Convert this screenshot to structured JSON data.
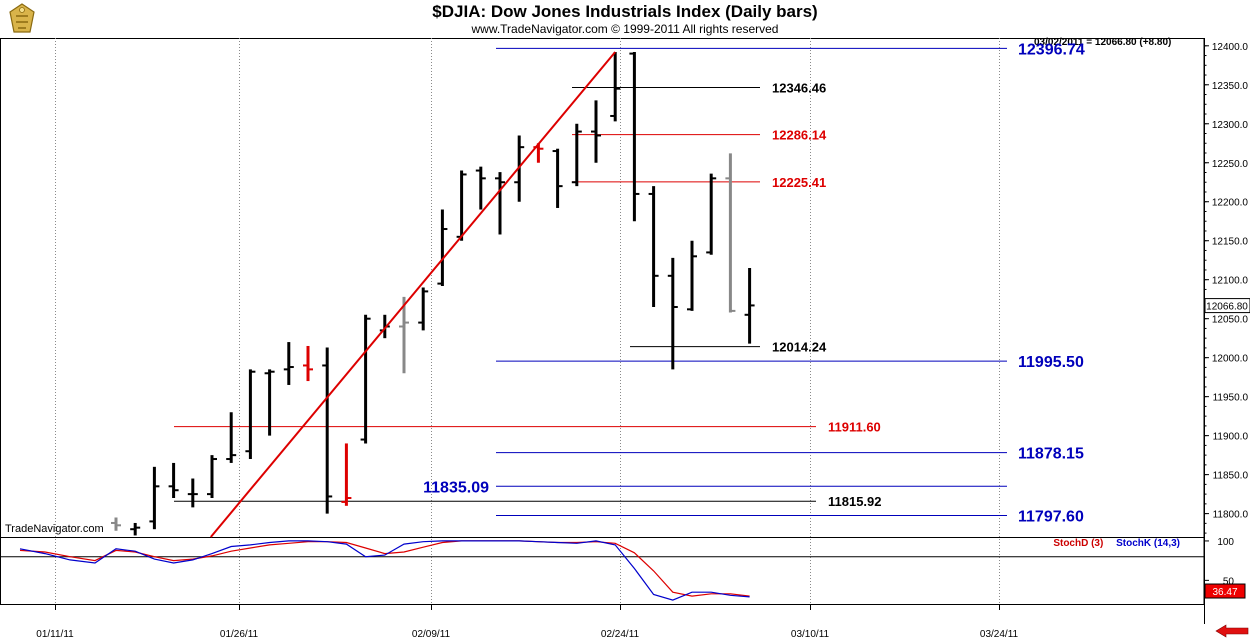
{
  "chart_data": {
    "type": "ohlc",
    "title": "$DJIA:  Dow Jones Industrials Index  (Daily bars)",
    "subtitle": "www.TradeNavigator.com © 1999-2011 All rights reserved",
    "quote": "03/02/2011 = 12066.80 (+8.80)",
    "last_value": "12066.80",
    "watermark": "TradeNavigator.com",
    "ylim": [
      11770,
      12410
    ],
    "y_ticks": [
      "11800.0",
      "11850.0",
      "11900.0",
      "11950.0",
      "12000.0",
      "12050.0",
      "12100.0",
      "12150.0",
      "12200.0",
      "12250.0",
      "12300.0",
      "12350.0",
      "12400.0"
    ],
    "x_ticks": [
      "01/11/11",
      "01/26/11",
      "02/09/11",
      "02/24/11",
      "03/10/11",
      "03/24/11"
    ],
    "bars": [
      {
        "date": "01/04",
        "o": 11788,
        "h": 11795,
        "l": 11778,
        "c": 11785,
        "color": "gray"
      },
      {
        "date": "01/05",
        "o": 11780,
        "h": 11788,
        "l": 11772,
        "c": 11782,
        "color": "black"
      },
      {
        "date": "01/06",
        "o": 11790,
        "h": 11860,
        "l": 11780,
        "c": 11835,
        "color": "black"
      },
      {
        "date": "01/07",
        "o": 11835,
        "h": 11865,
        "l": 11820,
        "c": 11830,
        "color": "black"
      },
      {
        "date": "01/10",
        "o": 11825,
        "h": 11845,
        "l": 11808,
        "c": 11825,
        "color": "black"
      },
      {
        "date": "01/11",
        "o": 11825,
        "h": 11875,
        "l": 11820,
        "c": 11870,
        "color": "black"
      },
      {
        "date": "01/12",
        "o": 11870,
        "h": 11930,
        "l": 11865,
        "c": 11875,
        "color": "black"
      },
      {
        "date": "01/13",
        "o": 11880,
        "h": 11985,
        "l": 11870,
        "c": 11982,
        "color": "black"
      },
      {
        "date": "01/14",
        "o": 11980,
        "h": 11985,
        "l": 11900,
        "c": 11982,
        "color": "black"
      },
      {
        "date": "01/18",
        "o": 11985,
        "h": 12020,
        "l": 11965,
        "c": 11988,
        "color": "black"
      },
      {
        "date": "01/19",
        "o": 11990,
        "h": 12015,
        "l": 11970,
        "c": 11985,
        "color": "red"
      },
      {
        "date": "01/20",
        "o": 11990,
        "h": 12013,
        "l": 11800,
        "c": 11822,
        "color": "black"
      },
      {
        "date": "01/21",
        "o": 11815,
        "h": 11890,
        "l": 11810,
        "c": 11820,
        "color": "red"
      },
      {
        "date": "01/24",
        "o": 11895,
        "h": 12055,
        "l": 11890,
        "c": 12050,
        "color": "black"
      },
      {
        "date": "01/25",
        "o": 12035,
        "h": 12055,
        "l": 12025,
        "c": 12040,
        "color": "black"
      },
      {
        "date": "01/26",
        "o": 12040,
        "h": 12078,
        "l": 11980,
        "c": 12045,
        "color": "gray"
      },
      {
        "date": "01/27",
        "o": 12045,
        "h": 12090,
        "l": 12035,
        "c": 12085,
        "color": "black"
      },
      {
        "date": "01/28",
        "o": 12095,
        "h": 12190,
        "l": 12092,
        "c": 12165,
        "color": "black"
      },
      {
        "date": "01/31",
        "o": 12155,
        "h": 12240,
        "l": 12150,
        "c": 12235,
        "color": "black"
      },
      {
        "date": "02/01",
        "o": 12240,
        "h": 12245,
        "l": 12190,
        "c": 12230,
        "color": "black"
      },
      {
        "date": "02/02",
        "o": 12230,
        "h": 12238,
        "l": 12158,
        "c": 12225,
        "color": "black"
      },
      {
        "date": "02/03",
        "o": 12225,
        "h": 12285,
        "l": 12200,
        "c": 12270,
        "color": "black"
      },
      {
        "date": "02/04",
        "o": 12270,
        "h": 12275,
        "l": 12250,
        "c": 12268,
        "color": "red"
      },
      {
        "date": "02/07",
        "o": 12265,
        "h": 12268,
        "l": 12192,
        "c": 12220,
        "color": "black"
      },
      {
        "date": "02/08",
        "o": 12225,
        "h": 12300,
        "l": 12220,
        "c": 12290,
        "color": "black"
      },
      {
        "date": "02/09",
        "o": 12290,
        "h": 12330,
        "l": 12250,
        "c": 12285,
        "color": "black"
      },
      {
        "date": "02/10",
        "o": 12310,
        "h": 12392,
        "l": 12303,
        "c": 12345,
        "color": "black"
      },
      {
        "date": "02/11",
        "o": 12390,
        "h": 12392,
        "l": 12175,
        "c": 12210,
        "color": "black"
      },
      {
        "date": "02/14",
        "o": 12210,
        "h": 12220,
        "l": 12065,
        "c": 12105,
        "color": "black"
      },
      {
        "date": "02/15",
        "o": 12105,
        "h": 12128,
        "l": 11985,
        "c": 12065,
        "color": "black"
      },
      {
        "date": "02/16",
        "o": 12062,
        "h": 12150,
        "l": 12060,
        "c": 12130,
        "color": "black"
      },
      {
        "date": "02/17",
        "o": 12135,
        "h": 12236,
        "l": 12132,
        "c": 12230,
        "color": "black"
      },
      {
        "date": "02/18",
        "o": 12230,
        "h": 12262,
        "l": 12058,
        "c": 12060,
        "color": "gray"
      },
      {
        "date": "02/22",
        "o": 12055,
        "h": 12115,
        "l": 12018,
        "c": 12067,
        "color": "black"
      }
    ],
    "levels": [
      {
        "value": 12396.74,
        "label": "12396.74",
        "color": "blue"
      },
      {
        "value": 12346.46,
        "label": "12346.46",
        "color": "black"
      },
      {
        "value": 12286.14,
        "label": "12286.14",
        "color": "red"
      },
      {
        "value": 12225.41,
        "label": "12225.41",
        "color": "red"
      },
      {
        "value": 12014.24,
        "label": "12014.24",
        "color": "black"
      },
      {
        "value": 11995.5,
        "label": "11995.50",
        "color": "blue"
      },
      {
        "value": 11911.6,
        "label": "11911.60",
        "color": "red"
      },
      {
        "value": 11878.15,
        "label": "11878.15",
        "color": "blue"
      },
      {
        "value": 11835.09,
        "label": "11835.09",
        "color": "blue"
      },
      {
        "value": 11815.92,
        "label": "11815.92",
        "color": "black"
      },
      {
        "value": 11797.6,
        "label": "11797.60",
        "color": "blue"
      }
    ],
    "trendline": {
      "from": {
        "date": "01/10",
        "value": 11770
      },
      "to": {
        "date": "02/10",
        "value": 12392
      },
      "color": "red"
    },
    "stochastic": {
      "legend_d": "StochD (3)",
      "legend_k": "StochK (14,3)",
      "ylim": [
        20,
        105
      ],
      "y_ticks": [
        "100",
        "50"
      ],
      "last_value": "36.47",
      "k": [
        90,
        87,
        77,
        72,
        76,
        84,
        93,
        95,
        98,
        100,
        100,
        99,
        96,
        80,
        82,
        96,
        99,
        100,
        100,
        100,
        100,
        100,
        99,
        98,
        97,
        100,
        95,
        65,
        32,
        25,
        35,
        35,
        31,
        29
      ],
      "d": [
        88,
        86,
        80,
        75,
        77,
        81,
        87,
        91,
        95,
        97,
        99,
        99,
        98,
        91,
        84,
        86,
        92,
        98,
        100,
        100,
        100,
        100,
        99,
        98,
        98,
        99,
        97,
        85,
        62,
        35,
        30,
        33,
        33,
        30
      ]
    }
  }
}
